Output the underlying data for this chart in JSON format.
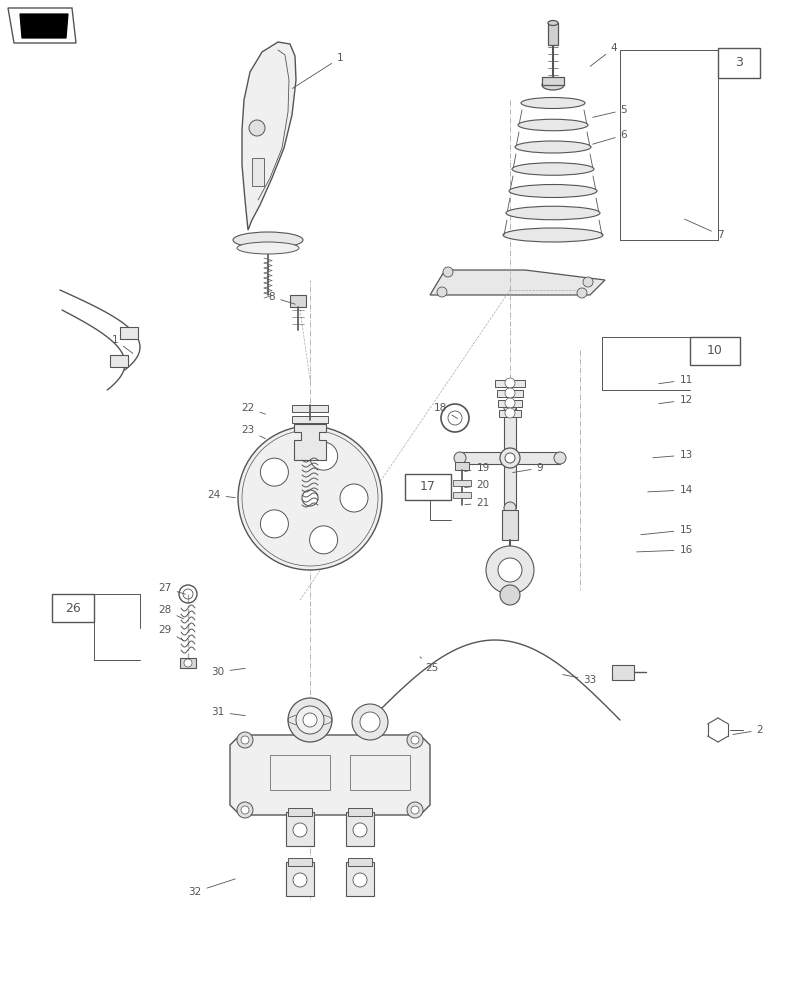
{
  "bg_color": "#ffffff",
  "line_color": "#555555",
  "fig_width": 8.12,
  "fig_height": 10.0,
  "dpi": 100
}
